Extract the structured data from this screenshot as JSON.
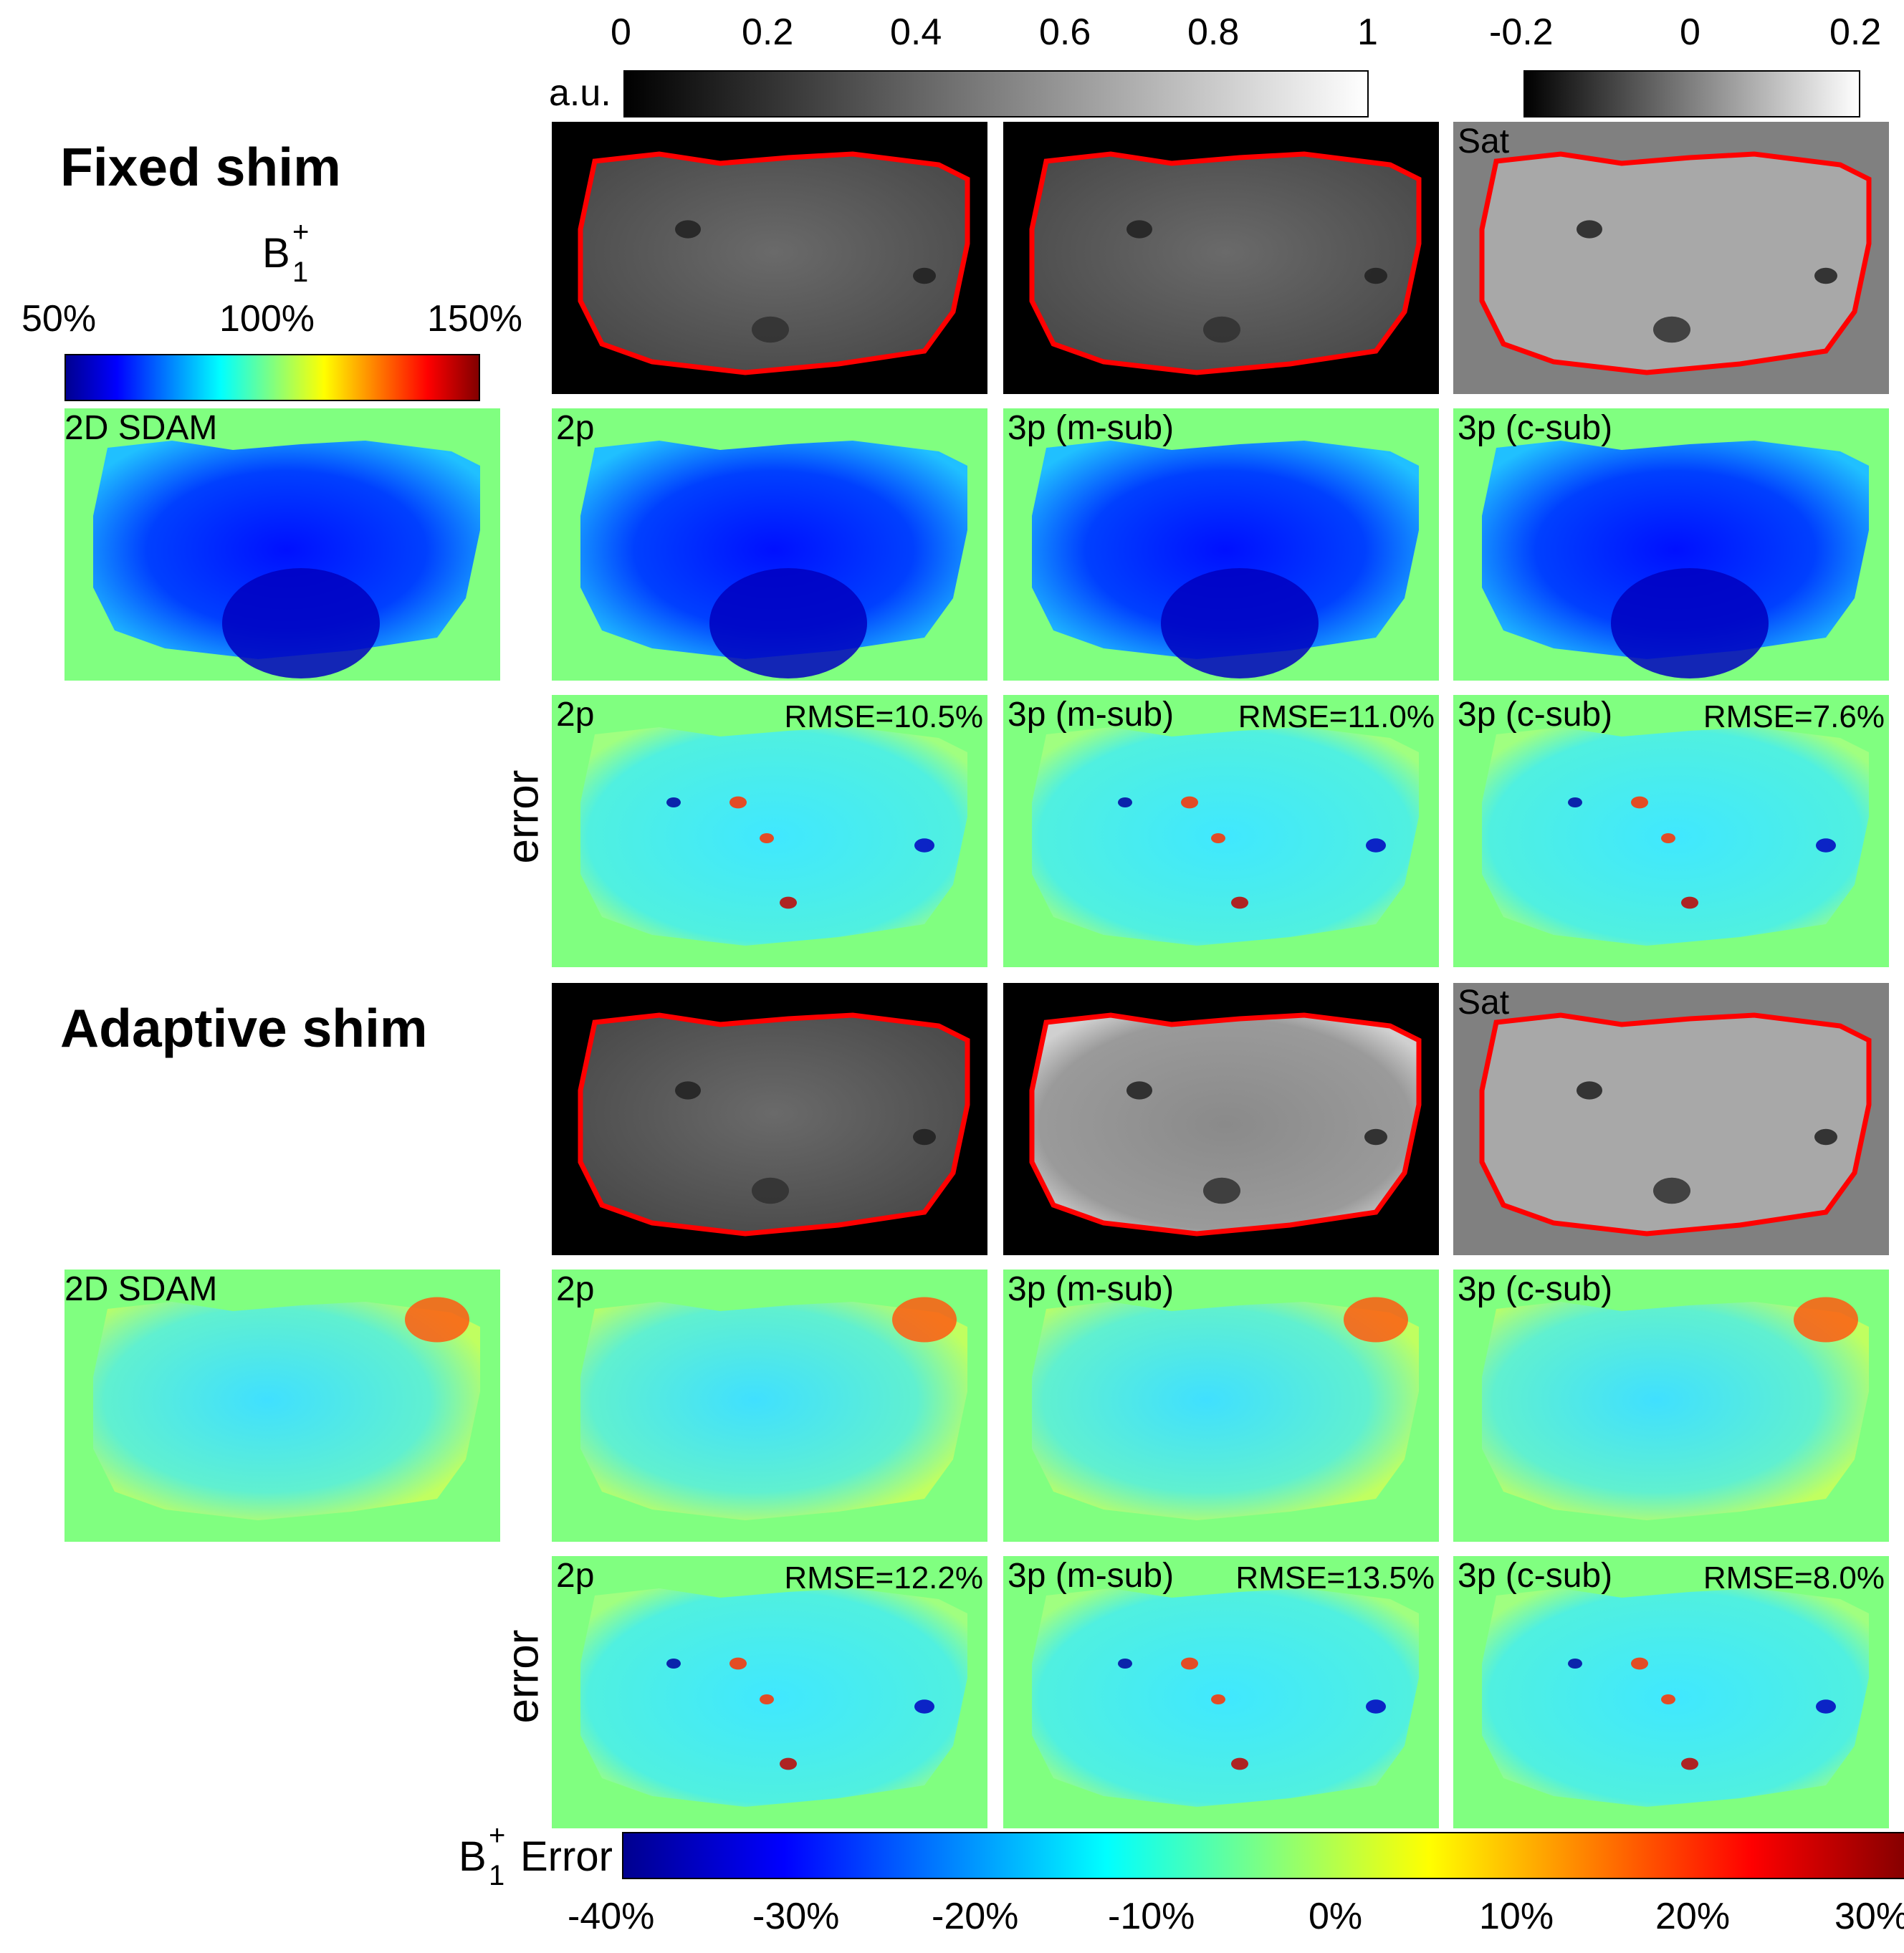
{
  "sections": [
    {
      "title": "Fixed shim"
    },
    {
      "title": "Adaptive shim"
    }
  ],
  "colorbars": {
    "gray": {
      "unit": "a.u.",
      "ticks": [
        "0",
        "0.2",
        "0.4",
        "0.6",
        "0.8",
        "1"
      ]
    },
    "sat": {
      "ticks": [
        "-0.2",
        "0",
        "0.2"
      ]
    },
    "b1": {
      "symbol": "B",
      "sup": "+",
      "sub": "1",
      "ticks": [
        "50%",
        "100%",
        "150%"
      ]
    },
    "error": {
      "symbol": "B",
      "sup": "+",
      "sub": "1",
      "label": "Error",
      "ticks": [
        "-40%",
        "-30%",
        "-20%",
        "-10%",
        "0%",
        "10%",
        "20%",
        "30%"
      ]
    }
  },
  "row_labels": {
    "error": "error"
  },
  "panels": {
    "sat": "Sat",
    "sdam": "2D SDAM",
    "p2": "2p",
    "m_sub": "3p (m-sub)",
    "c_sub": "3p (c-sub)"
  },
  "rmse": {
    "fixed": [
      "RMSE=10.5%",
      "RMSE=11.0%",
      "RMSE=7.6%"
    ],
    "adaptive": [
      "RMSE=12.2%",
      "RMSE=13.5%",
      "RMSE=8.0%"
    ]
  },
  "colors": {
    "background_green": "#80ff80",
    "outline_red": "#ff0000",
    "jet": [
      "#00008f",
      "#0000ff",
      "#0080ff",
      "#00ffff",
      "#80ff80",
      "#ffff00",
      "#ff8000",
      "#ff0000",
      "#800000"
    ]
  }
}
